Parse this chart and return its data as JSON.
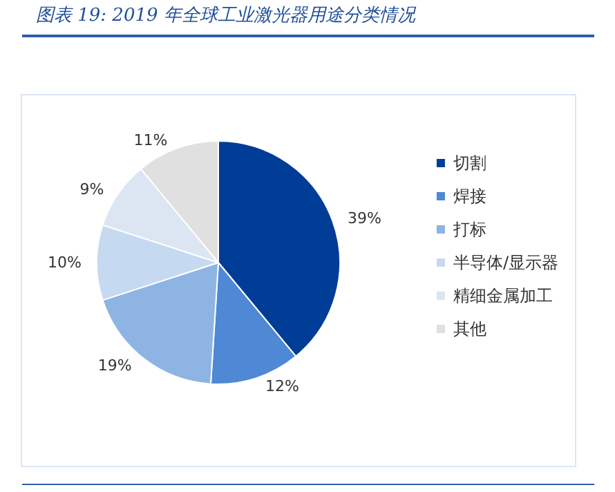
{
  "chart_data": {
    "type": "pie",
    "title": "图表 19:  2019 年全球工业激光器用途分类情况",
    "categories": [
      "切割",
      "焊接",
      "打标",
      "半导体/显示器",
      "精细金属加工",
      "其他"
    ],
    "values": [
      39,
      12,
      19,
      10,
      9,
      11
    ],
    "value_labels": [
      "39%",
      "12%",
      "19%",
      "10%",
      "9%",
      "11%"
    ],
    "colors": [
      "#003d96",
      "#4f88d4",
      "#8eb4e3",
      "#c5d9f1",
      "#dce6f2",
      "#e0e0e0"
    ],
    "legend": "right"
  }
}
